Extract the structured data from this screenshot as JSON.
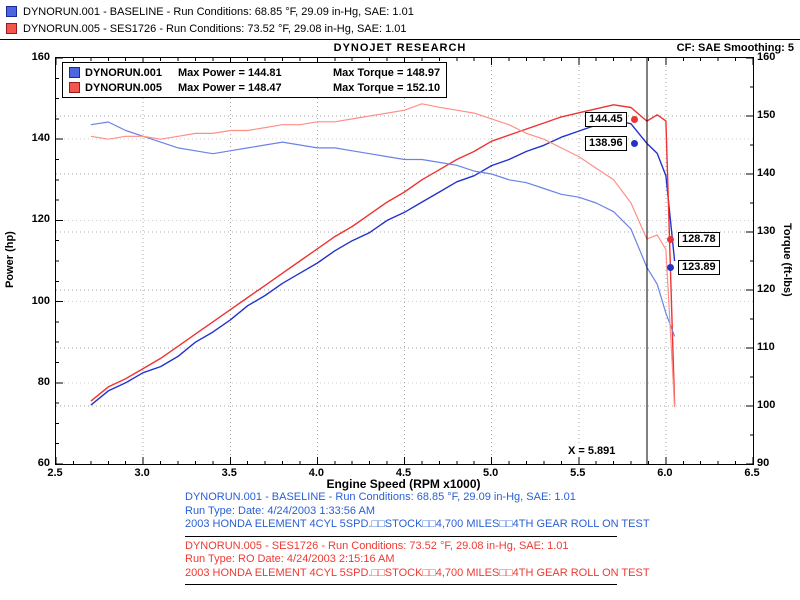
{
  "colors": {
    "blue_power": "#2233cc",
    "blue_torque": "#6b83e6",
    "red_power": "#ee3333",
    "red_torque": "#ff8f86",
    "grid": "#9a9a9a"
  },
  "header": {
    "title": "DYNOJET RESEARCH",
    "cf": "CF: SAE  Smoothing: 5",
    "runs_legend": [
      {
        "label": "DYNORUN.001 - BASELINE  -  Run Conditions: 68.85 °F, 29.09 in-Hg, SAE: 1.01"
      },
      {
        "label": "DYNORUN.005 - SES1726  -  Run Conditions: 73.52 °F, 29.08 in-Hg, SAE: 1.01"
      }
    ]
  },
  "inner_legend": {
    "rows": [
      {
        "name": "DYNORUN.001",
        "max_power": "Max Power = 144.81",
        "max_torque": "Max Torque = 148.97"
      },
      {
        "name": "DYNORUN.005",
        "max_power": "Max Power = 148.47",
        "max_torque": "Max Torque = 152.10"
      }
    ]
  },
  "annotations": {
    "cursor_label": "X = 5.891",
    "power_red": "144.45",
    "power_blue": "138.96",
    "torque_red": "128.78",
    "torque_blue": "123.89"
  },
  "chart_data": {
    "type": "line",
    "title": "DYNOJET RESEARCH",
    "xlabel": "Engine Speed (RPM x1000)",
    "ylabel_left": "Power (hp)",
    "ylabel_right": "Torque (ft-lbs)",
    "xlim": [
      2.5,
      6.5
    ],
    "ylim_power": [
      60,
      160
    ],
    "ylim_torque": [
      90,
      160
    ],
    "x_ticks": [
      2.5,
      3.0,
      3.5,
      4.0,
      4.5,
      5.0,
      5.5,
      6.0,
      6.5
    ],
    "power_ticks": [
      60,
      80,
      100,
      120,
      140,
      160
    ],
    "torque_ticks": [
      90,
      100,
      110,
      120,
      130,
      140,
      150,
      160
    ],
    "grid": true,
    "legend_position": "top-left",
    "cursor_x": 5.891,
    "cursor_values": {
      "power_ses": 144.45,
      "power_baseline": 138.96,
      "torque_ses": 128.78,
      "torque_baseline": 123.89
    },
    "x": [
      2.7,
      2.8,
      2.9,
      3.0,
      3.1,
      3.2,
      3.3,
      3.4,
      3.5,
      3.6,
      3.7,
      3.8,
      3.9,
      4.0,
      4.1,
      4.2,
      4.3,
      4.4,
      4.5,
      4.6,
      4.7,
      4.8,
      4.9,
      5.0,
      5.1,
      5.2,
      5.3,
      5.4,
      5.5,
      5.6,
      5.7,
      5.8,
      5.891,
      5.95,
      6.0,
      6.05
    ],
    "series": [
      {
        "name": "DYNORUN.001 Power (hp)",
        "axis": "power",
        "color": "#2233cc",
        "max": 144.81,
        "values": [
          74.5,
          78,
          80,
          82.5,
          84,
          86.5,
          90,
          92.5,
          95.5,
          99,
          101.5,
          104.5,
          107,
          109.5,
          112.5,
          115,
          117,
          120,
          122,
          124.5,
          127,
          129.5,
          131,
          133.5,
          135,
          137,
          138.5,
          140.5,
          142,
          143.5,
          144.8,
          143.8,
          138.96,
          136.5,
          131,
          110
        ]
      },
      {
        "name": "DYNORUN.005 Power (hp)",
        "axis": "power",
        "color": "#ee3333",
        "max": 148.47,
        "values": [
          75.5,
          79,
          81,
          83.5,
          86,
          89,
          92,
          95,
          98,
          101,
          104,
          107,
          110,
          113,
          116,
          118.5,
          121.5,
          124.5,
          127,
          130,
          132.5,
          135,
          137,
          139.5,
          141,
          142.5,
          144,
          145.5,
          146.5,
          147.5,
          148.47,
          147.8,
          144.45,
          146,
          144.5,
          74.5
        ]
      },
      {
        "name": "DYNORUN.001 Torque (ft-lbs)",
        "axis": "torque",
        "color": "#6b83e6",
        "max": 148.97,
        "values": [
          148.5,
          148.97,
          147.5,
          146.5,
          145.5,
          144.5,
          144,
          143.5,
          144,
          144.5,
          145,
          145.5,
          145,
          144.5,
          144.5,
          144,
          143.5,
          143,
          142.5,
          142.5,
          142,
          141.5,
          140.5,
          140,
          139,
          138.5,
          137.5,
          136.5,
          136,
          135,
          133.5,
          130.5,
          123.89,
          121,
          116,
          112
        ]
      },
      {
        "name": "DYNORUN.005 Torque (ft-lbs)",
        "axis": "torque",
        "color": "#ff8f86",
        "max": 152.1,
        "values": [
          146.5,
          146,
          146.5,
          146.5,
          146,
          146.5,
          147,
          147,
          147.5,
          147.5,
          148,
          148.5,
          148.5,
          149,
          149,
          149.5,
          150,
          150.5,
          151,
          152.1,
          151.5,
          151,
          150.5,
          149.5,
          148.5,
          147,
          146,
          144.5,
          143,
          141,
          139,
          135,
          128.78,
          129.5,
          127,
          99.8
        ]
      }
    ]
  },
  "footer": {
    "blocks": [
      {
        "lines": [
          "DYNORUN.001 - BASELINE  -  Run Conditions: 68.85 °F, 29.09 in-Hg, SAE: 1.01",
          "Run Type:   Date: 4/24/2003 1:33:56 AM",
          "2003 HONDA ELEMENT 4CYL  5SPD.□□STOCK□□4,700 MILES□□4TH GEAR ROLL ON TEST"
        ]
      },
      {
        "lines": [
          "DYNORUN.005 - SES1726  -  Run Conditions: 73.52 °F, 29.08 in-Hg, SAE: 1.01",
          "Run Type: RO  Date: 4/24/2003 2:15:16 AM",
          "2003 HONDA ELEMENT 4CYL  5SPD.□□STOCK□□4,700 MILES□□4TH GEAR ROLL ON TEST"
        ]
      }
    ]
  }
}
